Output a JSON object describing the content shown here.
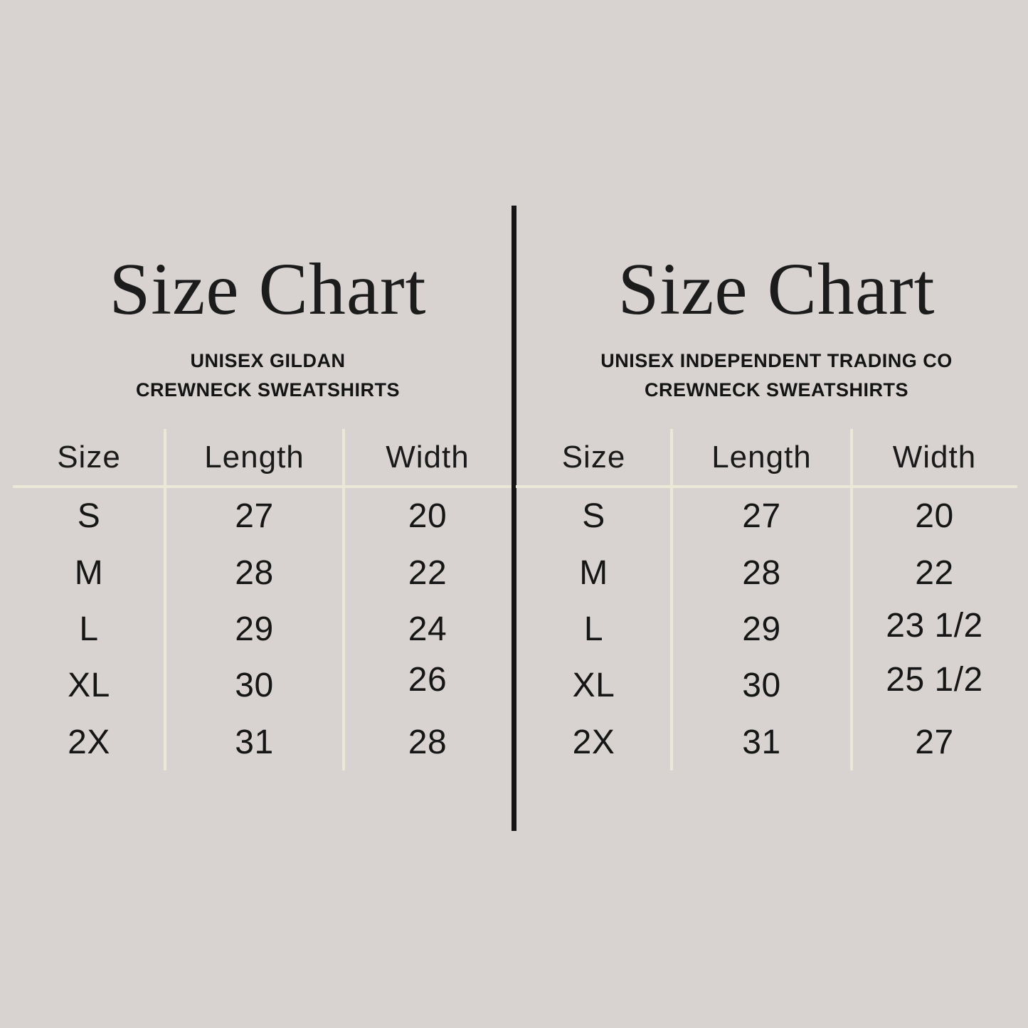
{
  "canvas": {
    "background_color": "#d8d3d1",
    "grid_line_color": "#ece8d7",
    "text_color": "#1c1c1c",
    "divider_color": "#151515"
  },
  "chart_data": [
    {
      "type": "table",
      "title": "Size Chart",
      "subtitle": [
        "UNISEX GILDAN",
        "CREWNECK SWEATSHIRTS"
      ],
      "columns": [
        "Size",
        "Length",
        "Width"
      ],
      "rows": [
        [
          "S",
          "27",
          "20"
        ],
        [
          "M",
          "28",
          "22"
        ],
        [
          "L",
          "29",
          "24"
        ],
        [
          "XL",
          "30",
          "26"
        ],
        [
          "2X",
          "31",
          "28"
        ]
      ]
    },
    {
      "type": "table",
      "title": "Size Chart",
      "subtitle": [
        "UNISEX INDEPENDENT TRADING CO",
        "CREWNECK SWEATSHIRTS"
      ],
      "columns": [
        "Size",
        "Length",
        "Width"
      ],
      "rows": [
        [
          "S",
          "27",
          "20"
        ],
        [
          "M",
          "28",
          "22"
        ],
        [
          "L",
          "29",
          "23 1/2"
        ],
        [
          "XL",
          "30",
          "25 1/2"
        ],
        [
          "2X",
          "31",
          "27"
        ]
      ]
    }
  ]
}
